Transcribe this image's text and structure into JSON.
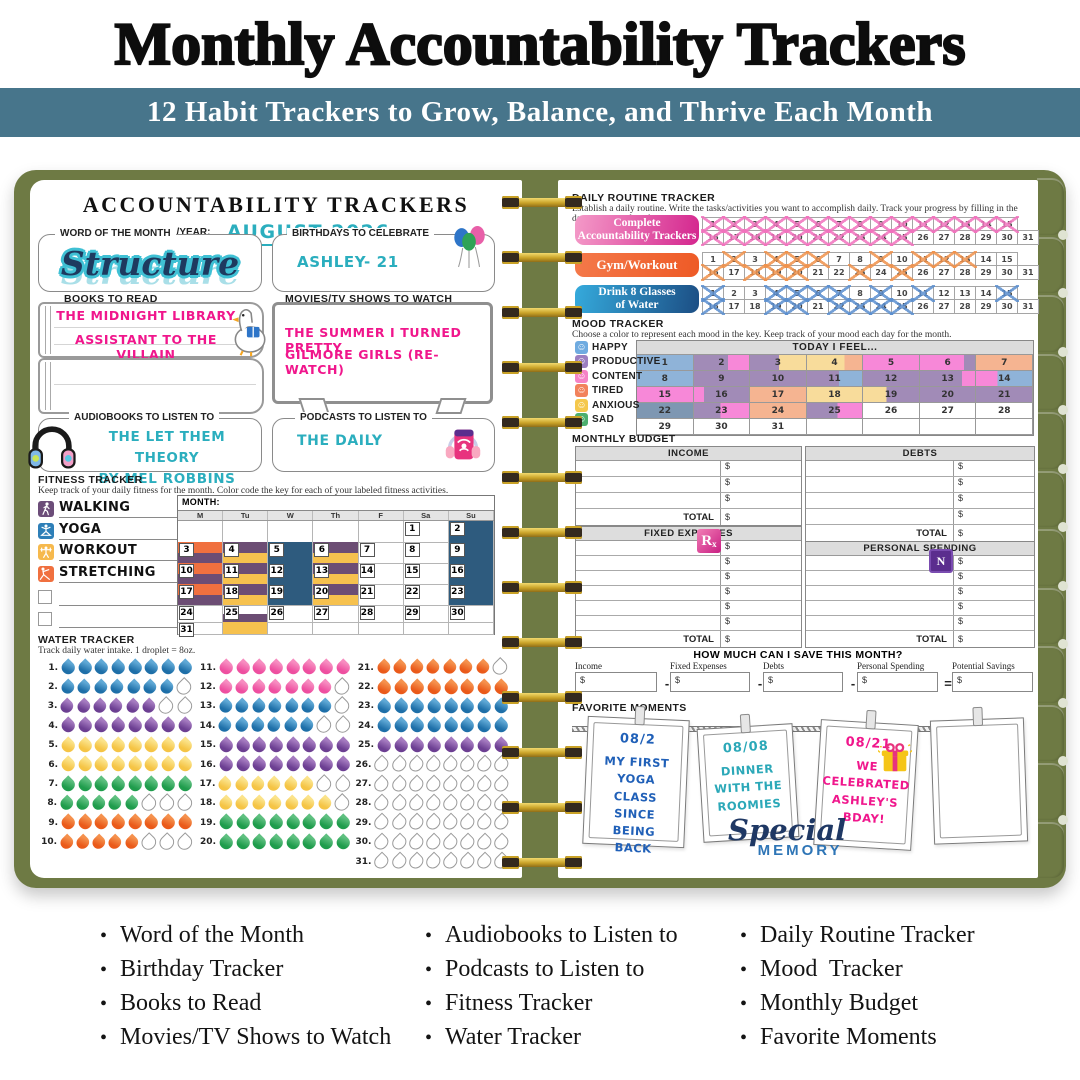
{
  "palette": {
    "banner_bg": "#47758B",
    "cover_green": "#6E7A44",
    "spiral_gold": "#C9A227",
    "teal_ink": "#2BAEBE",
    "pink_ink": "#F0168C",
    "blue_ink": "#2060B8",
    "navy_ink": "#1E3A5F",
    "structure_outline": "#3FC0D4"
  },
  "header": {
    "title": "Monthly Accountability Trackers",
    "banner": "12 Habit Trackers to Grow, Balance, and Thrive Each Month"
  },
  "left_page": {
    "title": "ACCOUNTABILITY TRACKERS",
    "month_year_label": "MONTH/YEAR:",
    "month_year_value": "AUGUST 2026",
    "word_of_month": {
      "label": "WORD OF THE MONTH",
      "value": "Structure"
    },
    "birthdays": {
      "label": "BIRTHDAYS TO CELEBRATE",
      "value": "ASHLEY- 21"
    },
    "books": {
      "label": "BOOKS TO READ",
      "line1": "THE MIDNIGHT LIBRARY",
      "line2": "ASSISTANT TO THE VILLAIN"
    },
    "movies": {
      "label": "MOVIES/TV SHOWS TO WATCH",
      "line1": "THE SUMMER I TURNED PRETTY",
      "line2": "GILMORE GIRLS (RE-WATCH)"
    },
    "audiobooks": {
      "label": "AUDIOBOOKS TO LISTEN TO",
      "line1": "THE LET THEM THEORY",
      "line2": "BY MEL ROBBINS"
    },
    "podcasts": {
      "label": "PODCASTS TO LISTEN TO",
      "line1": "THE DAILY"
    },
    "fitness": {
      "title": "FITNESS TRACKER",
      "subtitle": "Keep track of your daily fitness for the month. Color code the key for each of your labeled fitness activities.",
      "month_label": "MONTH:",
      "day_headers": [
        "M",
        "Tu",
        "W",
        "Th",
        "F",
        "Sa",
        "Su"
      ],
      "key": [
        {
          "label": "WALKING",
          "icon": "walking",
          "color": "#6C4D79"
        },
        {
          "label": "YOGA",
          "icon": "yoga",
          "color": "#2E7FB8"
        },
        {
          "label": "WORKOUT",
          "icon": "workout",
          "color": "#F6B94D"
        },
        {
          "label": "STRETCHING",
          "icon": "stretching",
          "color": "#F0703F"
        }
      ],
      "empty_key_rows": 2,
      "fill_colors": {
        "blue": "#2E5B7E",
        "purple": "#6C4D74",
        "orange": "#F0703F",
        "yellow": "#F6C14E",
        "none": "transparent"
      },
      "weeks": [
        [
          null,
          null,
          null,
          null,
          null,
          {
            "d": 1
          },
          {
            "d": 2,
            "fill": "blue"
          }
        ],
        [
          {
            "d": 3,
            "stripes": [
              "orange",
              "purple"
            ]
          },
          {
            "d": 4,
            "stripes": [
              "purple",
              "yellow"
            ]
          },
          {
            "d": 5,
            "fill": "blue"
          },
          {
            "d": 6,
            "stripes": [
              "purple",
              "yellow"
            ]
          },
          {
            "d": 7
          },
          {
            "d": 8
          },
          {
            "d": 9,
            "fill": "blue"
          }
        ],
        [
          {
            "d": 10,
            "stripes": [
              "orange",
              "purple"
            ]
          },
          {
            "d": 11,
            "stripes": [
              "purple",
              "yellow"
            ]
          },
          {
            "d": 12,
            "fill": "blue"
          },
          {
            "d": 13,
            "stripes": [
              "purple",
              "yellow"
            ]
          },
          {
            "d": 14
          },
          {
            "d": 15
          },
          {
            "d": 16,
            "fill": "blue"
          }
        ],
        [
          {
            "d": 17,
            "stripes": [
              "orange",
              "purple"
            ]
          },
          {
            "d": 18,
            "stripes": [
              "purple",
              "yellow"
            ]
          },
          {
            "d": 19,
            "fill": "blue"
          },
          {
            "d": 20,
            "stripes": [
              "purple",
              "yellow"
            ]
          },
          {
            "d": 21
          },
          {
            "d": 22
          },
          {
            "d": 23,
            "fill": "blue"
          }
        ],
        [
          {
            "d": 24
          },
          {
            "d": 25,
            "stripes": [
              "none",
              "purple"
            ]
          },
          {
            "d": 26
          },
          {
            "d": 27
          },
          {
            "d": 28
          },
          {
            "d": 29
          },
          {
            "d": 30
          }
        ],
        [
          {
            "d": 31
          },
          {
            "fill": "yellow"
          },
          null,
          null,
          null,
          null,
          null
        ]
      ]
    },
    "water": {
      "title": "WATER TRACKER",
      "subtitle": "Track daily water intake. 1 droplet = 8oz.",
      "droplets_per_day": 8,
      "colors": {
        "blue": [
          "#5FA8D5",
          "#1E6FA8"
        ],
        "purple": [
          "#A57BC0",
          "#6C3F92"
        ],
        "yellow": [
          "#FBE38A",
          "#F5C445"
        ],
        "green": [
          "#5FC080",
          "#1F9C4C"
        ],
        "orange": [
          "#F5914D",
          "#EA5A1A"
        ],
        "pink": [
          "#F78CC0",
          "#EE4FA0"
        ]
      },
      "days": [
        [
          "blue",
          8
        ],
        [
          "blue",
          7
        ],
        [
          "purple",
          6
        ],
        [
          "purple",
          8
        ],
        [
          "yellow",
          8
        ],
        [
          "yellow",
          8
        ],
        [
          "green",
          8
        ],
        [
          "green",
          5
        ],
        [
          "orange",
          8
        ],
        [
          "orange",
          5
        ],
        [
          "pink",
          8
        ],
        [
          "pink",
          7
        ],
        [
          "blue",
          7
        ],
        [
          "blue",
          6
        ],
        [
          "purple",
          8
        ],
        [
          "purple",
          8
        ],
        [
          "yellow",
          6
        ],
        [
          "yellow",
          7
        ],
        [
          "green",
          8
        ],
        [
          "green",
          8
        ],
        [
          "orange",
          7
        ],
        [
          "orange",
          8
        ],
        [
          "blue",
          8
        ],
        [
          "blue",
          8
        ],
        [
          "purple",
          8
        ],
        [
          "none",
          0
        ],
        [
          "none",
          0
        ],
        [
          "none",
          0
        ],
        [
          "none",
          0
        ],
        [
          "none",
          0
        ],
        [
          "none",
          0
        ]
      ]
    }
  },
  "right_page": {
    "daily_routine": {
      "title": "DAILY ROUTINE TRACKER",
      "subtitle": "Establish a daily routine. Write the tasks/activities you want to accomplish daily. Track your progress by filling in the days you complete them.",
      "days_total": 31,
      "tasks": [
        {
          "lines": [
            "Complete",
            "Accountability Trackers"
          ],
          "pill": [
            "#F49AC8",
            "#D4268E"
          ],
          "x_color": "#F273BE",
          "crossed": [
            1,
            2,
            3,
            4,
            5,
            6,
            7,
            8,
            9,
            10,
            11,
            12,
            13,
            14,
            15,
            16,
            17,
            18,
            19,
            20,
            21,
            22,
            23,
            24,
            25
          ]
        },
        {
          "lines": [
            "Gym/Workout"
          ],
          "pill": [
            "#F4794A",
            "#EE5A26"
          ],
          "x_color": "#F0924C",
          "crossed": [
            2,
            4,
            5,
            6,
            9,
            11,
            12,
            13,
            16,
            18,
            19,
            20,
            23,
            25
          ]
        },
        {
          "lines": [
            "Drink 8 Glasses",
            "of Water"
          ],
          "pill": [
            "#35AADC",
            "#1C4E84"
          ],
          "x_color": "#5B8FD0",
          "crossed": [
            1,
            4,
            5,
            6,
            7,
            9,
            11,
            15,
            16,
            19,
            20,
            22,
            23,
            24,
            25
          ]
        }
      ]
    },
    "mood": {
      "title": "MOOD TRACKER",
      "subtitle": "Choose a color to represent each mood in the key. Keep track of your mood each day for the month.",
      "grid_header": "TODAY I FEEL...",
      "key": [
        {
          "label": "HAPPY",
          "color": "#6FABE0"
        },
        {
          "label": "PRODUCTIVE",
          "color": "#9B7FC0"
        },
        {
          "label": "CONTENT",
          "color": "#F583C6"
        },
        {
          "label": "TIRED",
          "color": "#F2825C"
        },
        {
          "label": "ANXIOUS",
          "color": "#F5C84C"
        },
        {
          "label": "SAD",
          "color": "#4CAF6E"
        }
      ],
      "cell_colors": {
        "blue": "#8FB3D8",
        "purple": "#A18BB7",
        "pink": "#F788D8",
        "yellow": "#F8DC9B",
        "orange": "#F5B491",
        "slate": "#7E97B2",
        "white": "#FFFFFF"
      },
      "cells": [
        "blue",
        [
          "purple",
          "pink",
          62
        ],
        [
          "purple",
          "yellow",
          52
        ],
        [
          "yellow",
          "orange",
          68
        ],
        "pink",
        [
          "pink",
          "purple",
          80
        ],
        "orange",
        "blue",
        "purple",
        "purple",
        [
          "purple",
          "blue",
          58
        ],
        "purple",
        [
          "purple",
          "pink",
          76
        ],
        [
          "pink",
          "blue",
          38
        ],
        "pink",
        [
          "pink",
          "purple",
          18
        ],
        "orange",
        "yellow",
        [
          "yellow",
          "purple",
          42
        ],
        "purple",
        "purple",
        "slate",
        [
          "purple",
          "pink",
          48
        ],
        "orange",
        [
          "purple",
          "pink",
          55
        ],
        "white",
        "white",
        "white",
        "white",
        "white",
        "white"
      ]
    },
    "budget": {
      "title": "MONTHLY BUDGET",
      "dollar": "$",
      "total_label": "TOTAL",
      "tables": [
        {
          "id": "income",
          "header": "INCOME",
          "rows": 3
        },
        {
          "id": "debts",
          "header": "DEBTS",
          "rows": 4
        },
        {
          "id": "fixed",
          "header": "FIXED EXPENSES",
          "rows": 6,
          "sticker": "rx"
        },
        {
          "id": "personal",
          "header": "PERSONAL SPENDING",
          "rows": 5,
          "sticker": "n"
        }
      ],
      "rx_text": "Rx",
      "n_text": "N",
      "save_title": "HOW MUCH CAN I SAVE THIS MONTH?",
      "save_fields": [
        "Income",
        "Fixed Expenses",
        "Debts",
        "Personal Spending",
        "Potential Savings"
      ],
      "save_operators": [
        "-",
        "-",
        "-",
        "="
      ]
    },
    "favorites": {
      "title": "FAVORITE MOMENTS",
      "stamp_script": "Special",
      "stamp_caps": "MEMORY",
      "polaroids": [
        {
          "date": "08/2",
          "text": "MY FIRST YOGA CLASS SINCE BEING BACK",
          "ink": "#2060B8"
        },
        {
          "date": "08/08",
          "text": "DINNER WITH THE ROOMIES",
          "ink": "#2BA8B8"
        },
        {
          "date": "08/21",
          "text": "WE CELEBRATED ASHLEY'S BDAY!",
          "ink": "#F0168C",
          "gift": true
        },
        {
          "date": "",
          "text": "",
          "ink": "#333333"
        }
      ]
    }
  },
  "footer": {
    "columns": [
      [
        "Word of the Month",
        "Birthday Tracker",
        "Books to Read",
        "Movies/TV Shows to Watch"
      ],
      [
        "Audiobooks to Listen to",
        "Podcasts to Listen to",
        "Fitness Tracker",
        "Water Tracker"
      ],
      [
        "Daily Routine Tracker",
        "Mood  Tracker",
        "Monthly Budget",
        "Favorite Moments"
      ]
    ]
  }
}
